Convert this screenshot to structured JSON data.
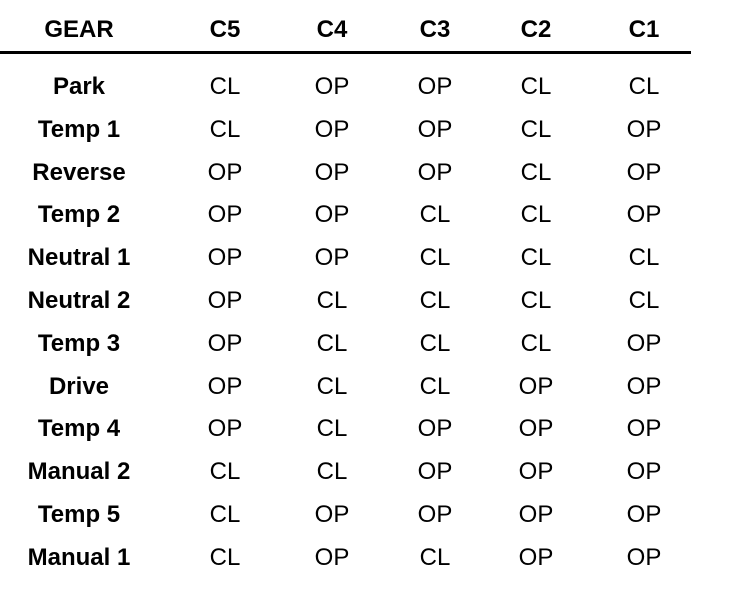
{
  "table": {
    "headers": [
      "GEAR",
      "C5",
      "C4",
      "C3",
      "C2",
      "C1"
    ],
    "rows": [
      [
        "Park",
        "CL",
        "OP",
        "OP",
        "CL",
        "CL"
      ],
      [
        "Temp 1",
        "CL",
        "OP",
        "OP",
        "CL",
        "OP"
      ],
      [
        "Reverse",
        "OP",
        "OP",
        "OP",
        "CL",
        "OP"
      ],
      [
        "Temp 2",
        "OP",
        "OP",
        "CL",
        "CL",
        "OP"
      ],
      [
        "Neutral 1",
        "OP",
        "OP",
        "CL",
        "CL",
        "CL"
      ],
      [
        "Neutral 2",
        "OP",
        "CL",
        "CL",
        "CL",
        "CL"
      ],
      [
        "Temp 3",
        "OP",
        "CL",
        "CL",
        "CL",
        "OP"
      ],
      [
        "Drive",
        "OP",
        "CL",
        "CL",
        "OP",
        "OP"
      ],
      [
        "Temp 4",
        "OP",
        "CL",
        "OP",
        "OP",
        "OP"
      ],
      [
        "Manual 2",
        "CL",
        "CL",
        "OP",
        "OP",
        "OP"
      ],
      [
        "Temp 5",
        "CL",
        "OP",
        "OP",
        "OP",
        "OP"
      ],
      [
        "Manual 1",
        "CL",
        "OP",
        "CL",
        "OP",
        "OP"
      ]
    ]
  }
}
